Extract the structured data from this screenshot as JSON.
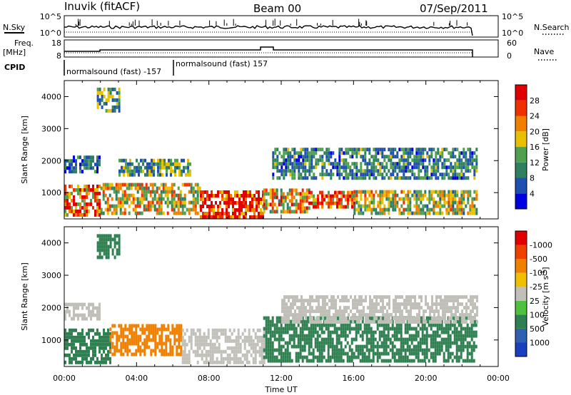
{
  "header": {
    "station": "Inuvik (fitACF)",
    "beam": "Beam 00",
    "date": "07/Sep/2011"
  },
  "top_panels": {
    "nsky_label": "N.Sky",
    "nsky_ticks": [
      "10^5",
      "10^0"
    ],
    "nsearch_label": "N.Search",
    "nsearch_ticks": [
      "10^5",
      "10^0"
    ],
    "freq_label": "Freq.",
    "freq_unit": "[MHz]",
    "freq_ticks": [
      "18",
      "8"
    ],
    "nave_label": "Nave",
    "nave_ticks": [
      "60",
      "0"
    ],
    "cpid_label": "CPID",
    "cpid_entries": [
      "normalsound (fast) -157",
      "normalsound (fast) 157"
    ]
  },
  "chart_data": [
    {
      "type": "heatmap",
      "name": "power",
      "ylabel": "Slant Range [km]",
      "xlabel": "",
      "ylim": [
        180,
        4500
      ],
      "xlim": [
        0,
        24
      ],
      "yticks": [
        "1000",
        "2000",
        "3000",
        "4000"
      ],
      "colorbar": {
        "label": "Power [dB]",
        "tick_labels": [
          "4",
          "8",
          "12",
          "16",
          "20",
          "24",
          "28"
        ],
        "colors": [
          "#0000e0",
          "#1f4fb0",
          "#2f8060",
          "#50a050",
          "#e8c000",
          "#f08000",
          "#f03000",
          "#e00000"
        ]
      },
      "echo_bands": [
        {
          "t0": 0.0,
          "t1": 2.0,
          "r0": 250,
          "r1": 1200,
          "value": 24
        },
        {
          "t0": 2.0,
          "t1": 7.5,
          "r0": 300,
          "r1": 1200,
          "value": 18
        },
        {
          "t0": 7.5,
          "t1": 11.0,
          "r0": 180,
          "r1": 1050,
          "value": 30
        },
        {
          "t0": 11.0,
          "t1": 13.5,
          "r0": 350,
          "r1": 1050,
          "value": 20
        },
        {
          "t0": 13.5,
          "t1": 16.0,
          "r0": 500,
          "r1": 1050,
          "value": 24
        },
        {
          "t0": 16.0,
          "t1": 22.8,
          "r0": 300,
          "r1": 1000,
          "value": 16
        },
        {
          "t0": 0.0,
          "t1": 2.0,
          "r0": 1600,
          "r1": 2050,
          "value": 8
        },
        {
          "t0": 3.0,
          "t1": 7.0,
          "r0": 1500,
          "r1": 2050,
          "value": 12
        },
        {
          "t0": 11.5,
          "t1": 22.8,
          "r0": 1400,
          "r1": 2400,
          "value": 10
        },
        {
          "t0": 1.8,
          "t1": 3.0,
          "r0": 3500,
          "r1": 4200,
          "value": 12
        }
      ]
    },
    {
      "type": "heatmap",
      "name": "velocity",
      "ylabel": "Slant Range [km]",
      "xlabel": "Time UT",
      "ylim": [
        180,
        4500
      ],
      "xlim": [
        0,
        24
      ],
      "yticks": [
        "1000",
        "2000",
        "3000",
        "4000"
      ],
      "xticks": [
        "00:00",
        "04:00",
        "08:00",
        "12:00",
        "16:00",
        "20:00",
        "00:00"
      ],
      "colorbar": {
        "label": "Velocity [m s",
        "label_exponent": "-1",
        "label_close": "]",
        "tick_labels": [
          "1000",
          "500",
          "100",
          "25",
          "-25",
          "-100",
          "-500",
          "-1000"
        ],
        "colors": [
          "#1a40c0",
          "#3060b0",
          "#2f8050",
          "#50c040",
          "#c0c0b8",
          "#f0c000",
          "#f08000",
          "#f04000",
          "#e00000"
        ]
      },
      "echo_bands": [
        {
          "t0": 0.0,
          "t1": 2.5,
          "r0": 250,
          "r1": 1300,
          "value": -300
        },
        {
          "t0": 2.5,
          "t1": 6.5,
          "r0": 500,
          "r1": 1450,
          "value": 150
        },
        {
          "t0": 6.5,
          "t1": 11.0,
          "r0": 250,
          "r1": 1300,
          "value": 0
        },
        {
          "t0": 11.0,
          "t1": 22.8,
          "r0": 300,
          "r1": 1700,
          "value": -300
        },
        {
          "t0": 0.0,
          "t1": 2.0,
          "r0": 1600,
          "r1": 2050,
          "value": 10
        },
        {
          "t0": 12.0,
          "t1": 22.8,
          "r0": 1500,
          "r1": 2300,
          "value": 10
        },
        {
          "t0": 1.8,
          "t1": 3.0,
          "r0": 3500,
          "r1": 4200,
          "value": -200
        }
      ]
    }
  ]
}
